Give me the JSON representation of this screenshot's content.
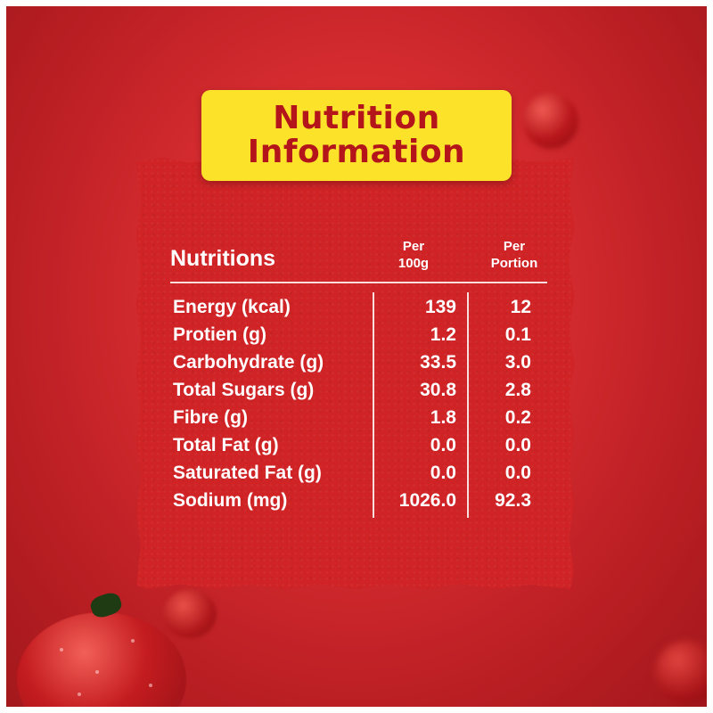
{
  "title": {
    "line1": "Nutrition",
    "line2": "Information"
  },
  "table": {
    "header": {
      "label": "Nutritions",
      "col_100g": "Per\n100g",
      "col_portion": "Per\nPortion"
    },
    "rows": [
      {
        "name": "Energy (kcal)",
        "per_100g": "139",
        "per_portion": "12"
      },
      {
        "name": "Protien (g)",
        "per_100g": "1.2",
        "per_portion": "0.1"
      },
      {
        "name": "Carbohydrate (g)",
        "per_100g": "33.5",
        "per_portion": "3.0"
      },
      {
        "name": "Total Sugars (g)",
        "per_100g": "30.8",
        "per_portion": "2.8"
      },
      {
        "name": "Fibre (g)",
        "per_100g": "1.8",
        "per_portion": "0.2"
      },
      {
        "name": "Total Fat (g)",
        "per_100g": "0.0",
        "per_portion": "0.0"
      },
      {
        "name": "Saturated Fat (g)",
        "per_100g": "0.0",
        "per_portion": "0.0"
      },
      {
        "name": "Sodium (mg)",
        "per_100g": "1026.0",
        "per_portion": "92.3"
      }
    ]
  },
  "colors": {
    "background": "#d62c30",
    "title_box": "#fce32a",
    "title_text": "#b3151b",
    "text": "#ffffff"
  }
}
